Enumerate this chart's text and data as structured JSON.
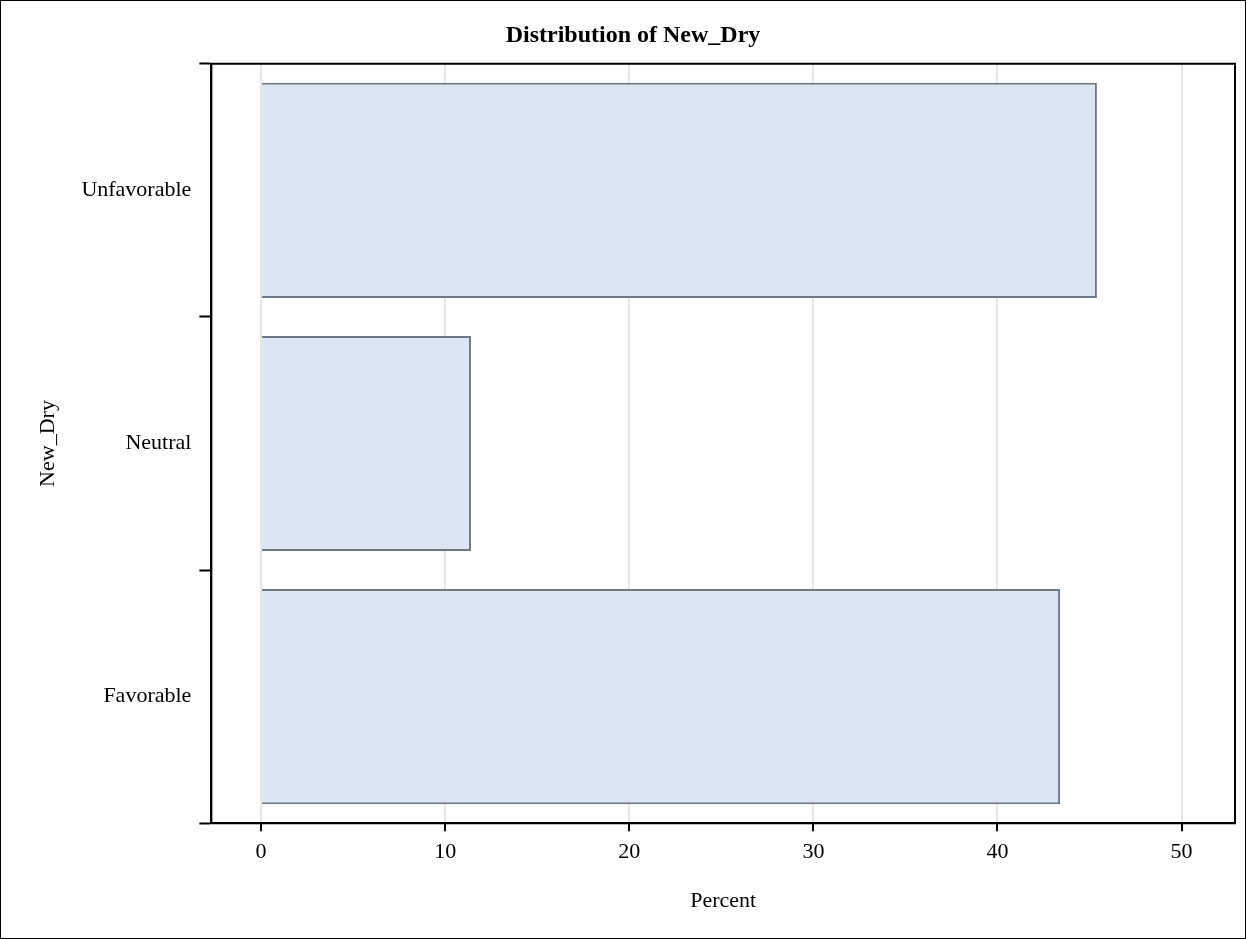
{
  "chart_data": {
    "type": "bar",
    "orientation": "horizontal",
    "title": "Distribution of New_Dry",
    "xlabel": "Percent",
    "ylabel": "New_Dry",
    "categories": [
      "Unfavorable",
      "Neutral",
      "Favorable"
    ],
    "values": [
      45.4,
      11.4,
      43.4
    ],
    "color": "#dce6f2",
    "xlim": [
      -2.7,
      52.9
    ],
    "xticks": [
      0,
      10,
      20,
      30,
      40,
      50
    ],
    "grid": "x"
  }
}
